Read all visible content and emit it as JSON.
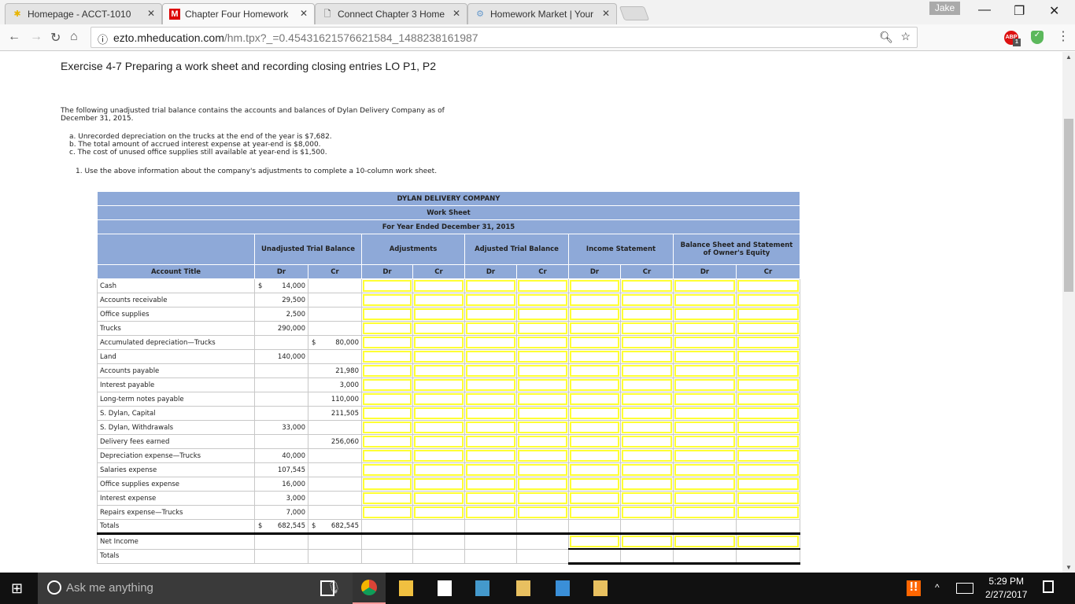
{
  "browser": {
    "tabs": [
      {
        "title": "Homepage - ACCT-1010",
        "icon": "asterisk-icon"
      },
      {
        "title": "Chapter Four Homework",
        "icon": "m-logo-icon"
      },
      {
        "title": "Connect Chapter 3 Home",
        "icon": "document-icon"
      },
      {
        "title": "Homework Market | Your",
        "icon": "network-icon"
      }
    ],
    "profile": "Jake",
    "url_host": "ezto.mheducation.com",
    "url_path": "/hm.tpx?_=0.45431621576621584_1488238161987",
    "abp_badge": "1"
  },
  "page": {
    "title": "Exercise 4-7 Preparing a work sheet and recording closing entries LO P1, P2",
    "intro": "The following unadjusted trial balance contains the accounts and balances of Dylan Delivery Company as of December 31, 2015.",
    "items": [
      "a. Unrecorded depreciation on the trucks at the end of the year is $7,682.",
      "b. The total amount of accrued interest expense at year-end is $8,000.",
      "c. The cost of unused office supplies still available at year-end is $1,500."
    ],
    "instruction": "1. Use the above information about the company's adjustments to complete a 10-column work sheet."
  },
  "worksheet": {
    "company": "DYLAN DELIVERY COMPANY",
    "title": "Work Sheet",
    "period": "For Year Ended December 31, 2015",
    "groups": [
      "Unadjusted Trial Balance",
      "Adjustments",
      "Adjusted Trial Balance",
      "Income Statement",
      "Balance Sheet and Statement of Owner's Equity"
    ],
    "account_header": "Account Title",
    "dr": "Dr",
    "cr": "Cr",
    "rows": [
      {
        "account": "Cash",
        "dr": "14,000",
        "cr": "",
        "dr_sign": "$"
      },
      {
        "account": "Accounts receivable",
        "dr": "29,500",
        "cr": ""
      },
      {
        "account": "Office supplies",
        "dr": "2,500",
        "cr": ""
      },
      {
        "account": "Trucks",
        "dr": "290,000",
        "cr": ""
      },
      {
        "account": "Accumulated depreciation—Trucks",
        "dr": "",
        "cr": "80,000",
        "cr_sign": "$"
      },
      {
        "account": "Land",
        "dr": "140,000",
        "cr": ""
      },
      {
        "account": "Accounts payable",
        "dr": "",
        "cr": "21,980"
      },
      {
        "account": "Interest payable",
        "dr": "",
        "cr": "3,000"
      },
      {
        "account": "Long-term notes payable",
        "dr": "",
        "cr": "110,000"
      },
      {
        "account": "S. Dylan, Capital",
        "dr": "",
        "cr": "211,505"
      },
      {
        "account": "S. Dylan, Withdrawals",
        "dr": "33,000",
        "cr": ""
      },
      {
        "account": "Delivery fees earned",
        "dr": "",
        "cr": "256,060"
      },
      {
        "account": "Depreciation expense—Trucks",
        "dr": "40,000",
        "cr": ""
      },
      {
        "account": "Salaries expense",
        "dr": "107,545",
        "cr": ""
      },
      {
        "account": "Office supplies expense",
        "dr": "16,000",
        "cr": ""
      },
      {
        "account": "Interest expense",
        "dr": "3,000",
        "cr": ""
      },
      {
        "account": "Repairs expense—Trucks",
        "dr": "7,000",
        "cr": ""
      }
    ],
    "totals": {
      "label": "Totals",
      "dr": "682,545",
      "cr": "682,545",
      "sign": "$"
    },
    "net_income_label": "Net Income",
    "final_totals_label": "Totals"
  },
  "taskbar": {
    "search_placeholder": "Ask me anything",
    "time": "5:29 PM",
    "date": "2/27/2017"
  },
  "colors": {
    "header_blue": "#8ea9d8",
    "input_border": "#ffff33"
  }
}
